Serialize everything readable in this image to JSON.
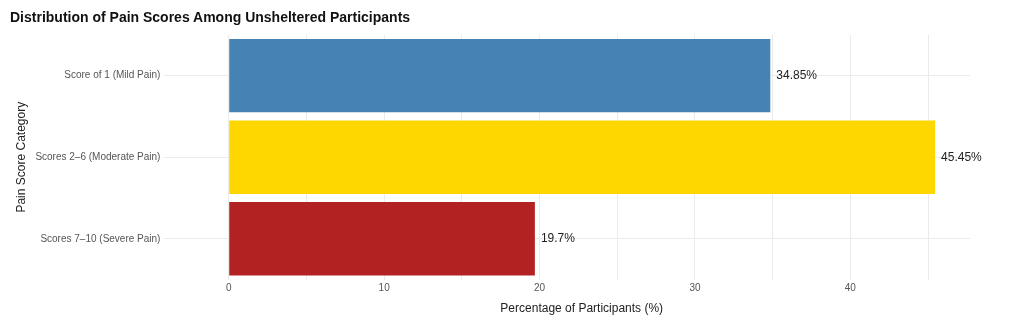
{
  "chart_data": {
    "type": "bar",
    "orientation": "horizontal",
    "title": "Distribution of Pain Scores Among Unsheltered Participants",
    "xlabel": "Percentage of Participants (%)",
    "ylabel": "Pain Score Category",
    "categories": [
      "Score of 1 (Mild Pain)",
      "Scores 2–6 (Moderate Pain)",
      "Scores 7–10 (Severe Pain)"
    ],
    "values": [
      34.85,
      45.45,
      19.7
    ],
    "colors": [
      "#4682b4",
      "#ffd700",
      "#b22222"
    ],
    "value_labels": [
      "34.85%",
      "45.45%",
      "19.7%"
    ],
    "xlim": [
      -2.27,
      47.7
    ],
    "xticks": [
      0,
      {
        "value": 5,
        "label": null
      },
      10,
      {
        "value": 15,
        "label": null
      },
      20,
      {
        "value": 25,
        "label": null
      },
      30,
      {
        "value": 35,
        "label": null
      },
      40,
      {
        "value": 45,
        "label": null
      }
    ],
    "grid": true
  }
}
